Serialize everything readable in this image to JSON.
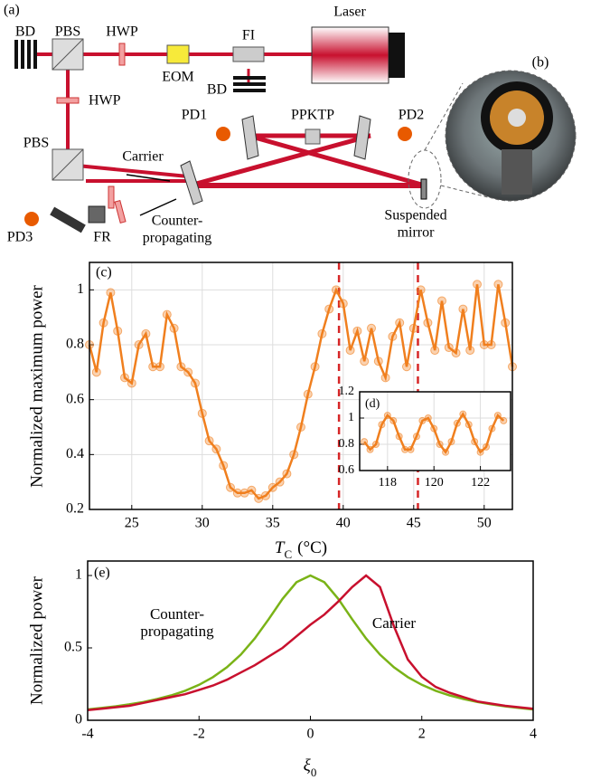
{
  "diagram": {
    "panel": "(a)",
    "labels": [
      "BD",
      "PBS",
      "HWP",
      "EOM",
      "FI",
      "Laser",
      "BD",
      "HWP",
      "PD1",
      "PPKTP",
      "PD2",
      "PBS",
      "Carrier",
      "PD3",
      "FR"
    ],
    "counter_propagating": [
      "Counter-",
      "propagating"
    ],
    "suspended_mirror": [
      "Suspended",
      "mirror"
    ],
    "photo_panel": "(b)"
  },
  "chart_data": [
    {
      "type": "line",
      "panel": "(c)",
      "y_label": "Normalized maximum power",
      "x_label": "T",
      "x_label_sub": "C",
      "x_label_unit": "(°C)",
      "x": [
        22,
        22.5,
        23,
        23.5,
        24,
        24.5,
        25,
        25.5,
        26,
        26.5,
        27,
        27.5,
        28,
        28.5,
        29,
        29.5,
        30,
        30.5,
        31,
        31.5,
        32,
        32.5,
        33,
        33.5,
        34,
        34.5,
        35,
        35.5,
        36,
        36.5,
        37,
        37.5,
        38,
        38.5,
        39,
        39.5,
        40,
        40.5,
        41,
        41.5,
        42,
        42.5,
        43,
        43.5,
        44,
        44.5,
        45,
        45.5,
        46,
        46.5,
        47,
        47.5,
        48,
        48.5,
        49,
        49.5,
        50,
        50.5,
        51,
        51.5,
        52
      ],
      "series": [
        {
          "color": "#f07f1e",
          "marker": "circle",
          "values": [
            0.8,
            0.7,
            0.88,
            0.99,
            0.85,
            0.68,
            0.66,
            0.8,
            0.84,
            0.72,
            0.72,
            0.91,
            0.86,
            0.72,
            0.7,
            0.66,
            0.55,
            0.45,
            0.42,
            0.36,
            0.28,
            0.26,
            0.26,
            0.27,
            0.24,
            0.25,
            0.28,
            0.3,
            0.33,
            0.4,
            0.5,
            0.62,
            0.72,
            0.84,
            0.93,
            1.0,
            0.95,
            0.78,
            0.85,
            0.74,
            0.86,
            0.74,
            0.68,
            0.83,
            0.88,
            0.72,
            0.86,
            1.0,
            0.88,
            0.78,
            0.96,
            0.79,
            0.77,
            0.93,
            0.78,
            1.02,
            0.8,
            0.8,
            1.02,
            0.88,
            0.72
          ]
        }
      ],
      "vlines": {
        "x": [
          39.7,
          45.3
        ],
        "color": "#d62728",
        "style": "dashed"
      },
      "xlim": [
        22,
        52
      ],
      "ylim": [
        0.2,
        1.1
      ],
      "xticks": [
        25,
        30,
        35,
        40,
        45,
        50
      ],
      "yticks": [
        0.2,
        0.4,
        0.6,
        0.8,
        1
      ],
      "grid": true
    },
    {
      "type": "line",
      "panel": "(d)",
      "x": [
        117,
        117.25,
        117.5,
        117.75,
        118,
        118.25,
        118.5,
        118.75,
        119,
        119.25,
        119.5,
        119.75,
        120,
        120.25,
        120.5,
        120.75,
        121,
        121.25,
        121.5,
        121.75,
        122,
        122.25,
        122.5,
        122.75,
        123
      ],
      "series": [
        {
          "color": "#f07f1e",
          "marker": "circle",
          "values": [
            0.82,
            0.76,
            0.8,
            0.95,
            1.02,
            0.98,
            0.86,
            0.76,
            0.76,
            0.86,
            0.98,
            1.0,
            0.92,
            0.8,
            0.74,
            0.82,
            0.96,
            1.03,
            0.95,
            0.82,
            0.74,
            0.78,
            0.92,
            1.02,
            0.98
          ]
        }
      ],
      "xlim": [
        116.8,
        123.3
      ],
      "ylim": [
        0.6,
        1.2
      ],
      "xticks": [
        118,
        120,
        122
      ],
      "yticks": [
        0.6,
        0.8,
        1,
        1.2
      ],
      "grid": true
    },
    {
      "type": "line",
      "panel": "(e)",
      "y_label": "Normalized power",
      "x_label": "ξ",
      "x_label_sub": "0",
      "x": [
        -4,
        -3.75,
        -3.5,
        -3.25,
        -3,
        -2.75,
        -2.5,
        -2.25,
        -2,
        -1.75,
        -1.5,
        -1.25,
        -1,
        -0.75,
        -0.5,
        -0.25,
        0,
        0.25,
        0.5,
        0.75,
        1,
        1.25,
        1.5,
        1.75,
        2,
        2.25,
        2.5,
        2.75,
        3,
        3.25,
        3.5,
        3.75,
        4
      ],
      "series": [
        {
          "label_lines": [
            "Counter-",
            "propagating"
          ],
          "color": "#7ab317",
          "values": [
            0.075,
            0.085,
            0.096,
            0.11,
            0.126,
            0.147,
            0.172,
            0.204,
            0.245,
            0.298,
            0.366,
            0.454,
            0.565,
            0.698,
            0.839,
            0.954,
            1.0,
            0.954,
            0.839,
            0.698,
            0.565,
            0.454,
            0.366,
            0.298,
            0.245,
            0.204,
            0.172,
            0.147,
            0.126,
            0.11,
            0.096,
            0.085,
            0.075
          ]
        },
        {
          "label_lines": [
            "Carrier"
          ],
          "color": "#c8102e",
          "values": [
            0.07,
            0.08,
            0.09,
            0.1,
            0.12,
            0.14,
            0.16,
            0.18,
            0.21,
            0.24,
            0.28,
            0.33,
            0.38,
            0.44,
            0.5,
            0.58,
            0.66,
            0.73,
            0.82,
            0.92,
            1.0,
            0.92,
            0.65,
            0.42,
            0.3,
            0.23,
            0.19,
            0.16,
            0.13,
            0.115,
            0.1,
            0.09,
            0.08
          ]
        }
      ],
      "xlim": [
        -4,
        4
      ],
      "ylim": [
        0,
        1.1
      ],
      "xticks": [
        -4,
        -2,
        0,
        2,
        4
      ],
      "yticks": [
        0,
        0.5,
        1
      ],
      "grid": false
    }
  ]
}
